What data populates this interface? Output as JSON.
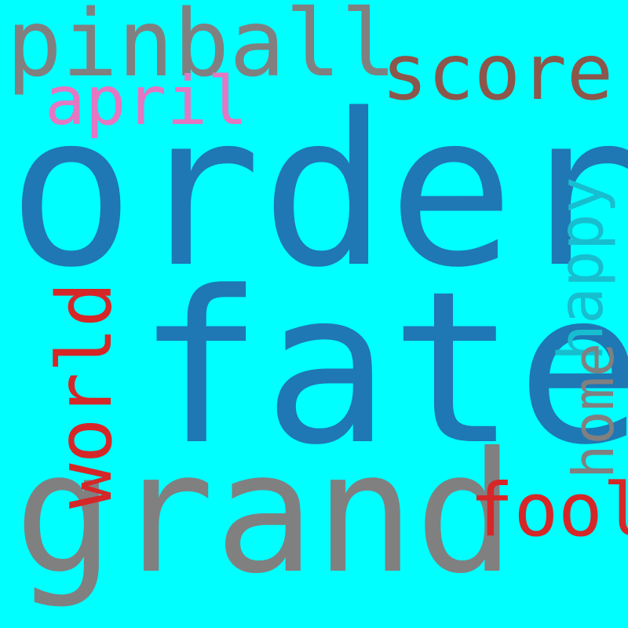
{
  "background": "#00FFFF",
  "words": [
    {
      "text": "pinball",
      "color": "#808080"
    },
    {
      "text": "score",
      "color": "#8C564B"
    },
    {
      "text": "april",
      "color": "#E377C2"
    },
    {
      "text": "order",
      "color": "#1F77B4"
    },
    {
      "text": "fate",
      "color": "#1F77B4"
    },
    {
      "text": "grand",
      "color": "#808080"
    },
    {
      "text": "world",
      "color": "#D62728"
    },
    {
      "text": "happy",
      "color": "#17BECF"
    },
    {
      "text": "home",
      "color": "#808080"
    },
    {
      "text": "fool",
      "color": "#D62728"
    }
  ]
}
